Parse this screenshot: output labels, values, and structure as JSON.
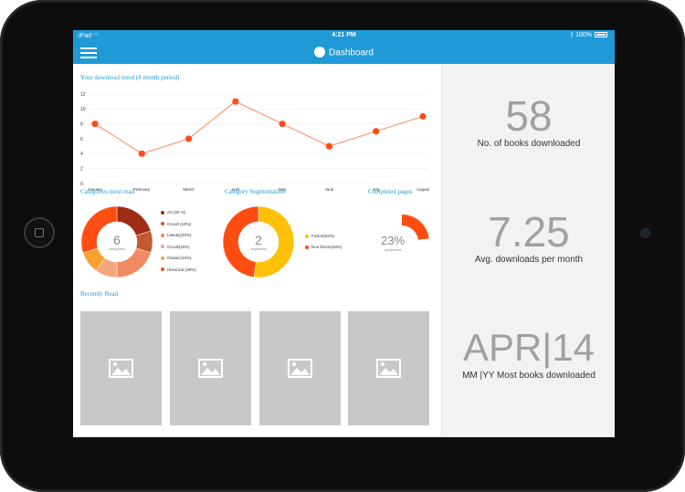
{
  "statusbar": {
    "carrier": "iPad",
    "time": "4:21 PM",
    "battery": "100%"
  },
  "navbar": {
    "title": "Dashboard"
  },
  "download_trend": {
    "title": "Your download trend (8 month period)",
    "chart_data": {
      "type": "line",
      "categories": [
        "January",
        "February",
        "March",
        "April",
        "May",
        "June",
        "July",
        "August"
      ],
      "values": [
        8,
        4,
        6,
        11,
        8,
        5,
        7,
        9
      ],
      "yticks": [
        "0",
        "2",
        "4",
        "6",
        "8",
        "10",
        "12"
      ],
      "ylim": [
        0,
        12
      ],
      "color": "#ff8855",
      "point_color": "#ff4d1a"
    }
  },
  "categories": {
    "title": "Categories most read",
    "center_value": "6",
    "center_label": "categories",
    "chart_data": {
      "type": "pie",
      "labels": [
        "Art (20 %)",
        "Occult (10%)",
        "Literaly(20%)",
        "Occult(10%)",
        "Classic(10%)",
        "Historical (30%)"
      ],
      "values": [
        20,
        10,
        20,
        10,
        10,
        30
      ],
      "colors": [
        "#9e2d12",
        "#c4582f",
        "#f08a63",
        "#f6a57c",
        "#f7a233",
        "#ff4d12"
      ]
    }
  },
  "segmentation": {
    "title": "Category Segmentation",
    "center_value": "2",
    "center_label": "segments",
    "chart_data": {
      "type": "pie",
      "labels": [
        "Fiction(52%)",
        "Non-fiction(48%)"
      ],
      "values": [
        52,
        48
      ],
      "colors": [
        "#ffc107",
        "#ff4d12"
      ]
    }
  },
  "completed": {
    "title": "Completed pages",
    "value": "23%",
    "label": "completed",
    "fraction": 0.23,
    "color": "#ff4d12"
  },
  "recently_read": {
    "title": "Recently Read"
  },
  "stats": [
    {
      "value": "58",
      "label": "No. of books downloaded"
    },
    {
      "value": "7.25",
      "label": "Avg. downloads per month"
    },
    {
      "value": "APR|14",
      "label": "MM |YY Most books downloaded"
    }
  ]
}
